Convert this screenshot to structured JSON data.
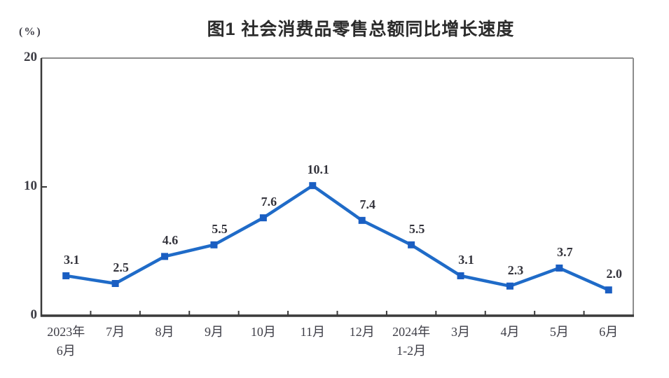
{
  "chart_data": {
    "type": "line",
    "title": "图1 社会消费品零售总额同比增长速度",
    "unit_label": "(%)",
    "series_name": "社会消费品零售总额同比增长速度",
    "categories": [
      "2023年6月",
      "7月",
      "8月",
      "9月",
      "10月",
      "11月",
      "12月",
      "2024年1-2月",
      "3月",
      "4月",
      "5月",
      "6月"
    ],
    "category_label_lines": [
      [
        "2023年",
        "6月"
      ],
      [
        "7月"
      ],
      [
        "8月"
      ],
      [
        "9月"
      ],
      [
        "10月"
      ],
      [
        "11月"
      ],
      [
        "12月"
      ],
      [
        "2024年",
        "1-2月"
      ],
      [
        "3月"
      ],
      [
        "4月"
      ],
      [
        "5月"
      ],
      [
        "6月"
      ]
    ],
    "values": [
      3.1,
      2.5,
      4.6,
      5.5,
      7.6,
      10.1,
      7.4,
      5.5,
      3.1,
      2.3,
      3.7,
      2.0
    ],
    "data_labels": [
      "3.1",
      "2.5",
      "4.6",
      "5.5",
      "7.6",
      "10.1",
      "7.4",
      "5.5",
      "3.1",
      "2.3",
      "3.7",
      "2.0"
    ],
    "ylim": [
      0,
      20
    ],
    "yticks": [
      0,
      10,
      20
    ],
    "ytick_labels": [
      "0",
      "10",
      "20"
    ],
    "grid": false,
    "legend": "none",
    "marker": "square",
    "line_color": "#1f6bc8",
    "marker_color": "#1a5ec2",
    "axis_color": "#3a3a3a",
    "frame_color": "#8c8c8c"
  }
}
